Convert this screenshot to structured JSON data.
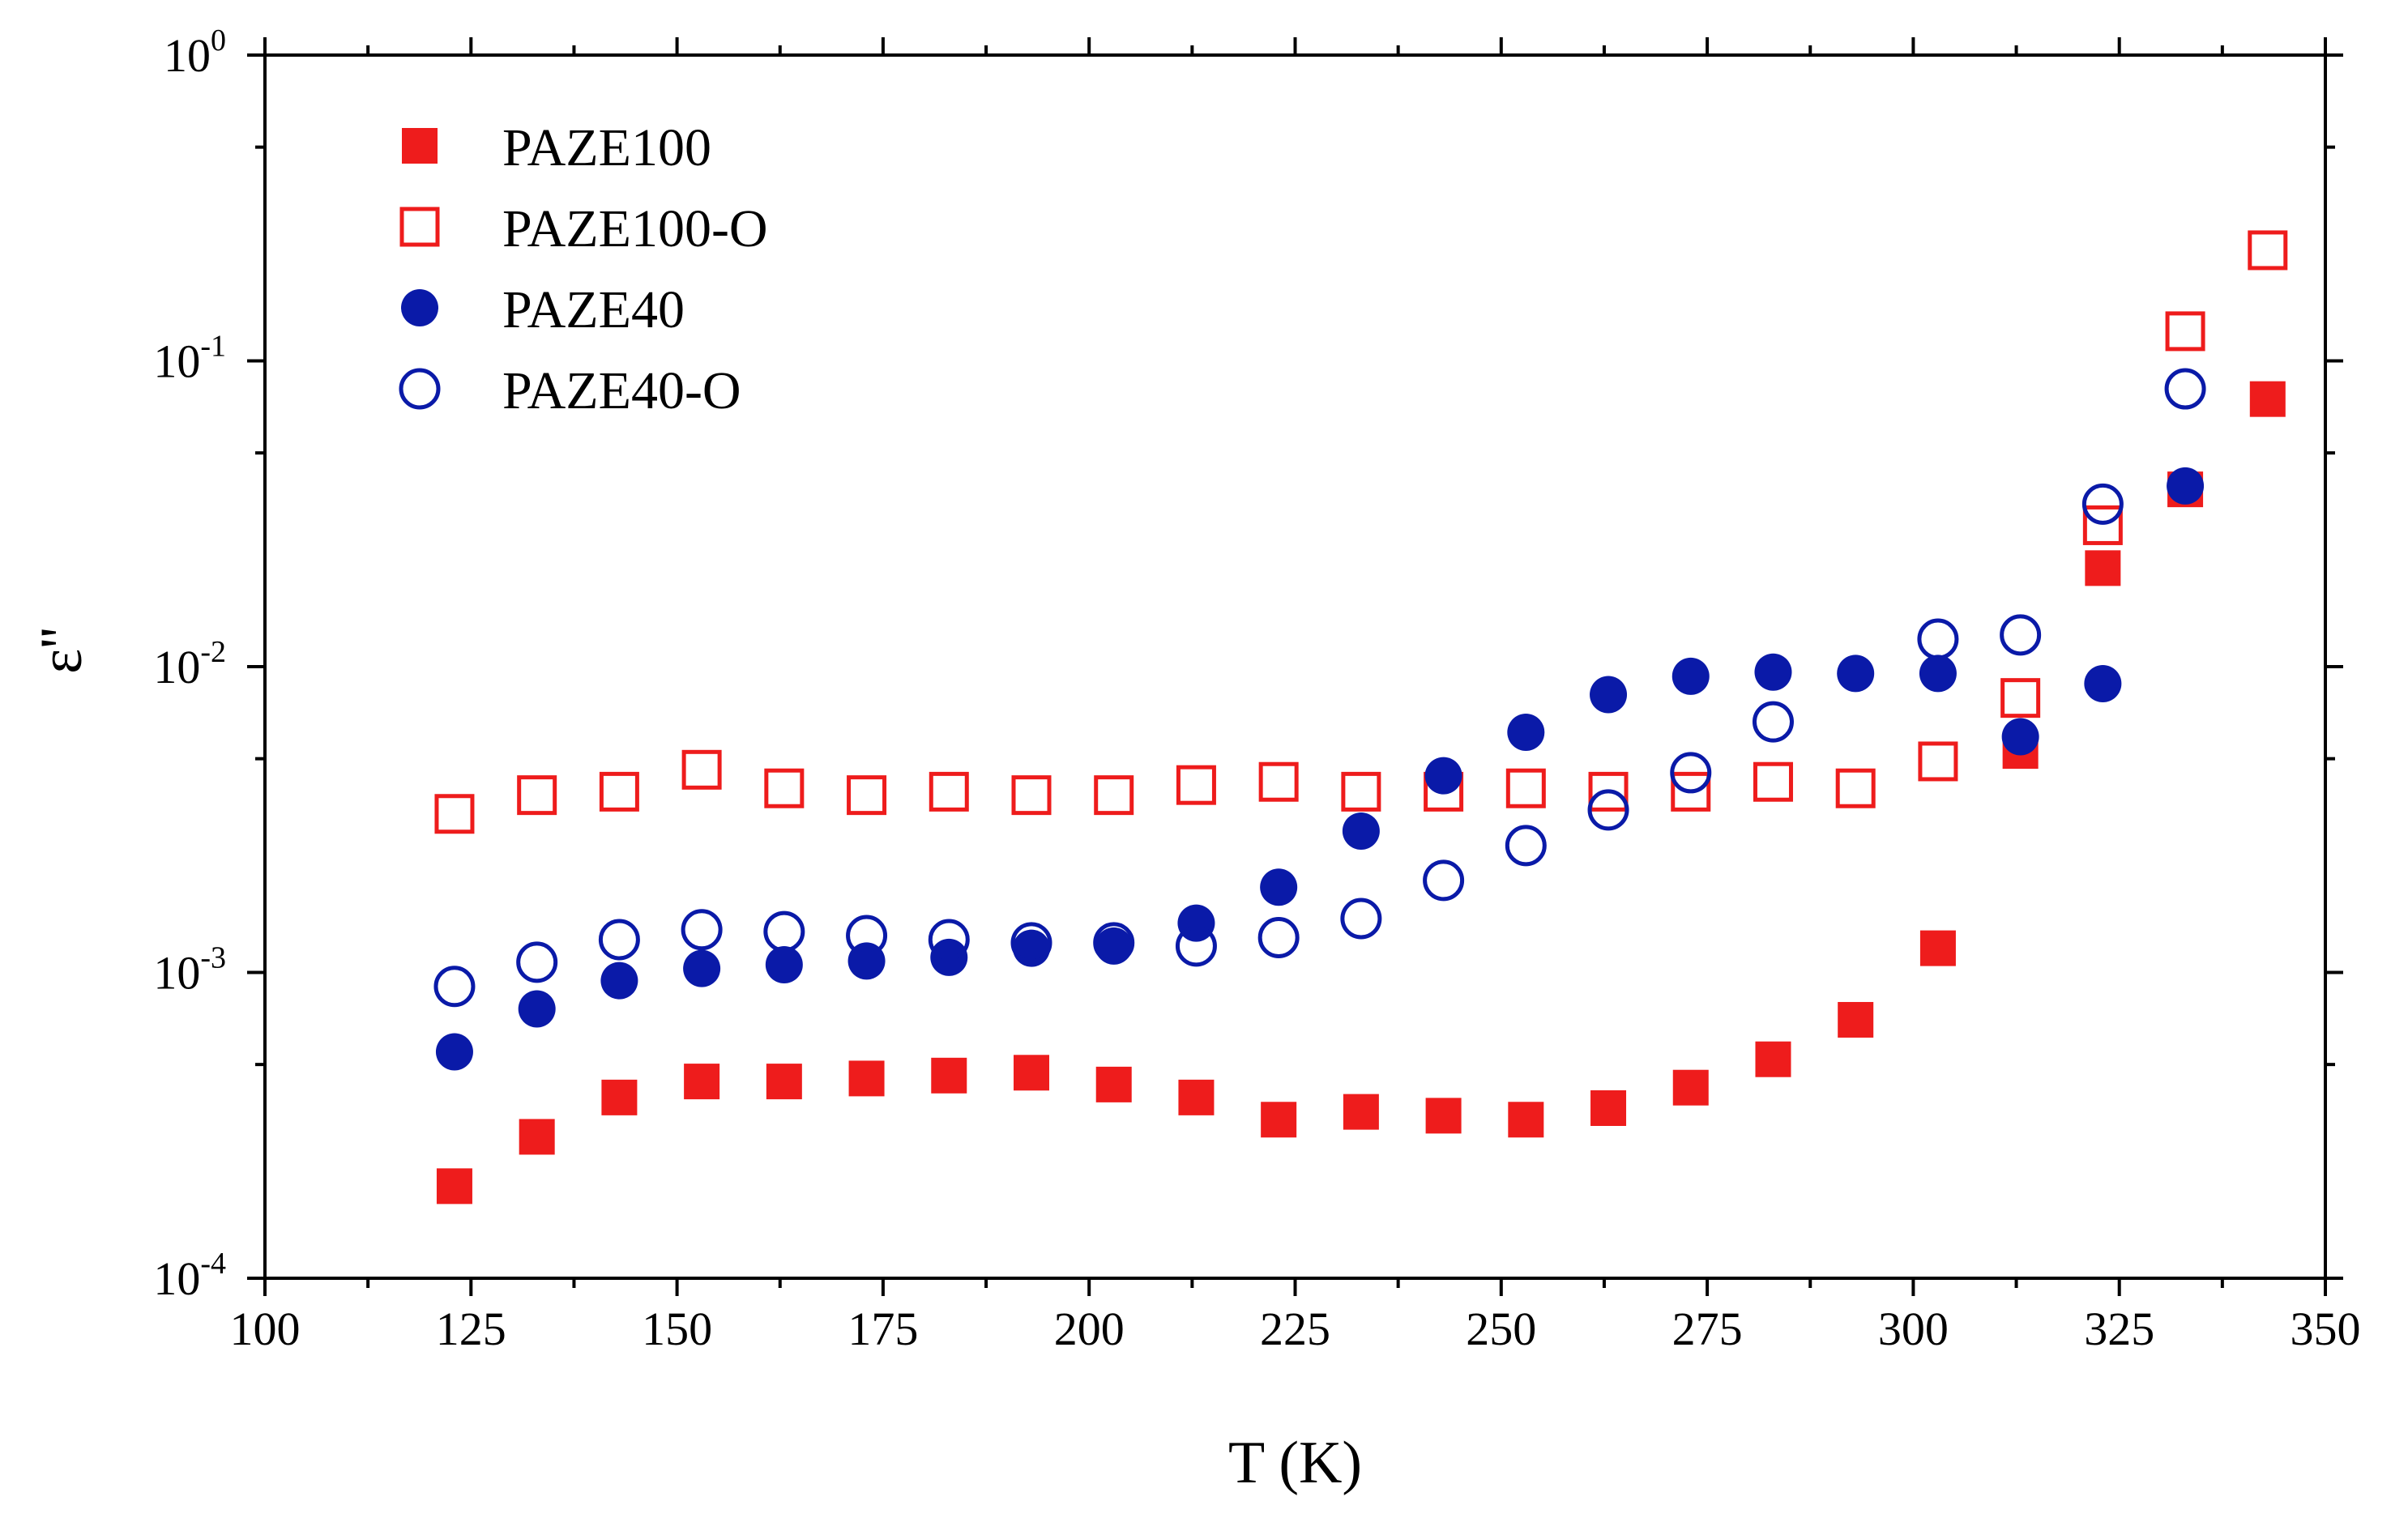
{
  "chart_data": {
    "type": "scatter",
    "title": "",
    "xlabel": "T (K)",
    "ylabel": "ε''",
    "xlim": [
      100,
      350
    ],
    "ylim": [
      0.0001,
      1
    ],
    "yscale": "log",
    "x_ticks": [
      100,
      125,
      150,
      175,
      200,
      225,
      250,
      275,
      300,
      325,
      350
    ],
    "x_tick_labels": [
      "100",
      "125",
      "150",
      "175",
      "200",
      "225",
      "250",
      "275",
      "300",
      "325",
      "350"
    ],
    "y_ticks": [
      0.0001,
      0.001,
      0.01,
      0.1,
      1
    ],
    "y_tick_labels": [
      {
        "base": "10",
        "exp": "-4"
      },
      {
        "base": "10",
        "exp": "-3"
      },
      {
        "base": "10",
        "exp": "-2"
      },
      {
        "base": "10",
        "exp": "-1"
      },
      {
        "base": "10",
        "exp": "0"
      }
    ],
    "legend_position": "top-left",
    "series": [
      {
        "name": "PAZE100",
        "marker": "square-filled",
        "color": "#ee1c1c",
        "x": [
          123,
          133,
          143,
          153,
          163,
          173,
          183,
          193,
          203,
          213,
          223,
          233,
          243,
          253,
          263,
          273,
          283,
          293,
          303,
          313,
          323,
          333,
          343
        ],
        "y": [
          0.0002,
          0.00029,
          0.00039,
          0.00044,
          0.00044,
          0.00045,
          0.00046,
          0.00047,
          0.00043,
          0.00039,
          0.00033,
          0.00035,
          0.00034,
          0.00033,
          0.00036,
          0.00042,
          0.00052,
          0.0007,
          0.0012,
          0.0053,
          0.021,
          0.038,
          0.075
        ]
      },
      {
        "name": "PAZE100-O",
        "marker": "square-open",
        "color": "#ee1c1c",
        "x": [
          123,
          133,
          143,
          153,
          163,
          173,
          183,
          193,
          203,
          213,
          223,
          233,
          243,
          253,
          263,
          273,
          283,
          293,
          303,
          313,
          323,
          333,
          343
        ],
        "y": [
          0.0033,
          0.0038,
          0.0039,
          0.0046,
          0.004,
          0.0038,
          0.0039,
          0.0038,
          0.0038,
          0.0041,
          0.0042,
          0.0039,
          0.0039,
          0.004,
          0.0039,
          0.0039,
          0.0042,
          0.004,
          0.0049,
          0.0079,
          0.029,
          0.125,
          0.23
        ]
      },
      {
        "name": "PAZE40",
        "marker": "circle-filled",
        "color": "#0a1aa8",
        "x": [
          123,
          133,
          143,
          153,
          163,
          173,
          183,
          193,
          203,
          213,
          223,
          233,
          243,
          253,
          263,
          273,
          283,
          293,
          303,
          313,
          323,
          333
        ],
        "y": [
          0.00055,
          0.00076,
          0.00094,
          0.00103,
          0.00106,
          0.00109,
          0.00112,
          0.0012,
          0.00122,
          0.00145,
          0.0019,
          0.0029,
          0.0044,
          0.0061,
          0.0081,
          0.0093,
          0.0096,
          0.0095,
          0.0095,
          0.0059,
          0.0088,
          0.039
        ]
      },
      {
        "name": "PAZE40-O",
        "marker": "circle-open",
        "color": "#0a1aa8",
        "x": [
          123,
          133,
          143,
          153,
          163,
          173,
          183,
          193,
          203,
          213,
          223,
          233,
          243,
          253,
          263,
          273,
          283,
          303,
          313,
          323,
          333
        ],
        "y": [
          0.0009,
          0.00108,
          0.00128,
          0.00138,
          0.00136,
          0.00132,
          0.00128,
          0.00125,
          0.00125,
          0.00122,
          0.0013,
          0.0015,
          0.002,
          0.0026,
          0.0034,
          0.0045,
          0.0066,
          0.0123,
          0.0127,
          0.034,
          0.081
        ]
      }
    ]
  }
}
